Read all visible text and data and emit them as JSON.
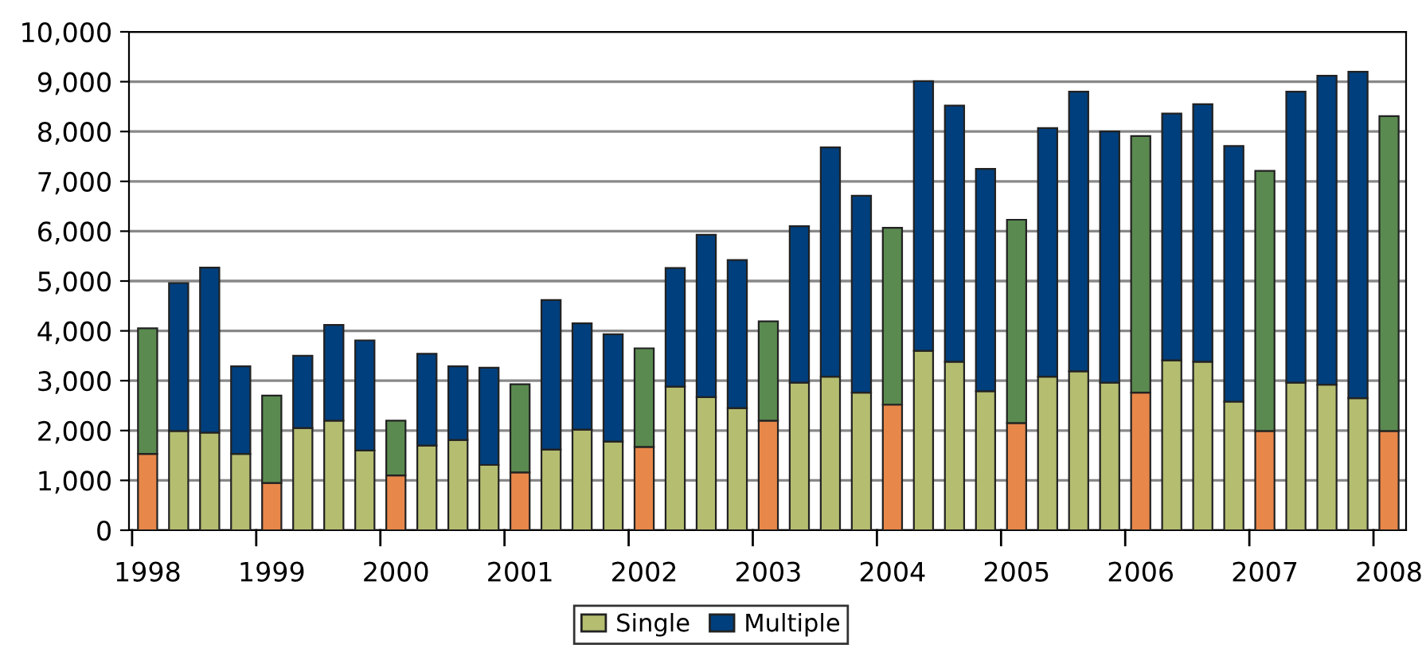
{
  "chart_data": {
    "type": "bar",
    "stacked": true,
    "categories": [
      "1998",
      null,
      null,
      null,
      "1999",
      null,
      null,
      null,
      "2000",
      null,
      null,
      null,
      "2001",
      null,
      null,
      null,
      "2002",
      null,
      null,
      null,
      "2003",
      null,
      null,
      null,
      "2004",
      null,
      null,
      null,
      "2005",
      null,
      null,
      null,
      "2006",
      null,
      null,
      null,
      "2007",
      null,
      null,
      null,
      "2008"
    ],
    "series": [
      {
        "name": "Single",
        "color": "#b5bd70",
        "colors": [
          "#e8874a",
          "#b5bd70",
          "#b5bd70",
          "#b5bd70",
          "#e8874a",
          "#b5bd70",
          "#b5bd70",
          "#b5bd70",
          "#e8874a",
          "#b5bd70",
          "#b5bd70",
          "#b5bd70",
          "#e8874a",
          "#b5bd70",
          "#b5bd70",
          "#b5bd70",
          "#e8874a",
          "#b5bd70",
          "#b5bd70",
          "#b5bd70",
          "#e8874a",
          "#b5bd70",
          "#b5bd70",
          "#b5bd70",
          "#e8874a",
          "#b5bd70",
          "#b5bd70",
          "#b5bd70",
          "#e8874a",
          "#b5bd70",
          "#b5bd70",
          "#b5bd70",
          "#e8874a",
          "#b5bd70",
          "#b5bd70",
          "#b5bd70",
          "#e8874a",
          "#b5bd70",
          "#b5bd70",
          "#b5bd70",
          "#e8874a"
        ],
        "values": [
          1530,
          1990,
          1960,
          1530,
          950,
          2050,
          2200,
          1600,
          1100,
          1700,
          1810,
          1310,
          1160,
          1620,
          2020,
          1780,
          1670,
          2880,
          2670,
          2450,
          2200,
          2960,
          3080,
          2760,
          2520,
          3600,
          3380,
          2790,
          2150,
          3080,
          3190,
          2960,
          2760,
          3410,
          3380,
          2580,
          1990,
          2960,
          2920,
          2650,
          1990
        ]
      },
      {
        "name": "Multiple",
        "color": "#003f7d",
        "colors": [
          "#5a8a50",
          "#003f7d",
          "#003f7d",
          "#003f7d",
          "#5a8a50",
          "#003f7d",
          "#003f7d",
          "#003f7d",
          "#5a8a50",
          "#003f7d",
          "#003f7d",
          "#003f7d",
          "#5a8a50",
          "#003f7d",
          "#003f7d",
          "#003f7d",
          "#5a8a50",
          "#003f7d",
          "#003f7d",
          "#003f7d",
          "#5a8a50",
          "#003f7d",
          "#003f7d",
          "#003f7d",
          "#5a8a50",
          "#003f7d",
          "#003f7d",
          "#003f7d",
          "#5a8a50",
          "#003f7d",
          "#003f7d",
          "#003f7d",
          "#5a8a50",
          "#003f7d",
          "#003f7d",
          "#003f7d",
          "#5a8a50",
          "#003f7d",
          "#003f7d",
          "#003f7d",
          "#5a8a50"
        ],
        "values": [
          2520,
          2970,
          3310,
          1760,
          1750,
          1450,
          1920,
          2210,
          1100,
          1840,
          1480,
          1950,
          1770,
          3000,
          2130,
          2150,
          1980,
          2380,
          3260,
          2970,
          1990,
          3140,
          4600,
          3950,
          3550,
          5410,
          5140,
          4460,
          4080,
          4990,
          5610,
          5040,
          5150,
          4950,
          5170,
          5130,
          5220,
          5840,
          6200,
          6550,
          6320
        ]
      }
    ],
    "ylim": [
      0,
      10000
    ],
    "yticks": [
      {
        "value": 0,
        "label": "0"
      },
      {
        "value": 1000,
        "label": "1,000"
      },
      {
        "value": 2000,
        "label": "2,000"
      },
      {
        "value": 3000,
        "label": "3,000"
      },
      {
        "value": 4000,
        "label": "4,000"
      },
      {
        "value": 5000,
        "label": "5,000"
      },
      {
        "value": 6000,
        "label": "6,000"
      },
      {
        "value": 7000,
        "label": "7,000"
      },
      {
        "value": 8000,
        "label": "8,000"
      },
      {
        "value": 9000,
        "label": "9,000"
      },
      {
        "value": 10000,
        "label": "10,000"
      }
    ],
    "grid": "y",
    "legend": "bottom"
  }
}
